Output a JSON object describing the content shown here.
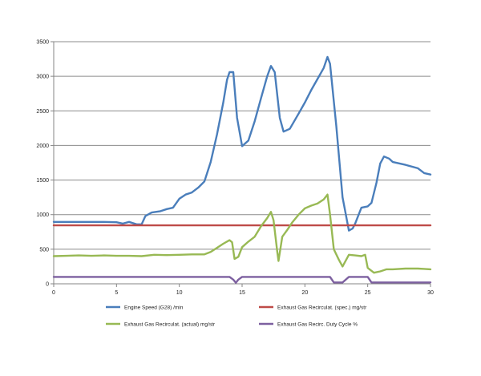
{
  "chart_data": {
    "type": "line",
    "xlim": [
      0,
      30
    ],
    "ylim": [
      0,
      3500
    ],
    "x_ticks": [
      0,
      5,
      10,
      15,
      20,
      25,
      30
    ],
    "y_ticks": [
      0,
      500,
      1000,
      1500,
      2000,
      2500,
      3000,
      3500
    ],
    "grid": "horizontal",
    "legend_position": "bottom",
    "series": [
      {
        "name": "Engine Speed (G28)  /min",
        "color": "#4a7ebb",
        "points": [
          [
            0,
            895
          ],
          [
            2,
            895
          ],
          [
            4,
            895
          ],
          [
            5,
            890
          ],
          [
            5.5,
            870
          ],
          [
            6,
            895
          ],
          [
            6.6,
            860
          ],
          [
            7,
            860
          ],
          [
            7.3,
            980
          ],
          [
            7.8,
            1030
          ],
          [
            8.5,
            1050
          ],
          [
            9,
            1080
          ],
          [
            9.5,
            1100
          ],
          [
            10,
            1230
          ],
          [
            10.5,
            1290
          ],
          [
            11,
            1320
          ],
          [
            11.5,
            1390
          ],
          [
            12,
            1480
          ],
          [
            12.5,
            1760
          ],
          [
            13,
            2160
          ],
          [
            13.5,
            2620
          ],
          [
            13.8,
            2950
          ],
          [
            14,
            3060
          ],
          [
            14.3,
            3060
          ],
          [
            14.6,
            2400
          ],
          [
            15,
            1990
          ],
          [
            15.5,
            2070
          ],
          [
            16,
            2350
          ],
          [
            16.5,
            2680
          ],
          [
            17,
            3000
          ],
          [
            17.3,
            3150
          ],
          [
            17.6,
            3060
          ],
          [
            18,
            2400
          ],
          [
            18.3,
            2200
          ],
          [
            18.8,
            2240
          ],
          [
            19.5,
            2460
          ],
          [
            20,
            2620
          ],
          [
            20.5,
            2800
          ],
          [
            21,
            2960
          ],
          [
            21.5,
            3120
          ],
          [
            21.8,
            3280
          ],
          [
            22,
            3180
          ],
          [
            22.5,
            2280
          ],
          [
            23,
            1250
          ],
          [
            23.5,
            770
          ],
          [
            23.8,
            800
          ],
          [
            24,
            870
          ],
          [
            24.5,
            1100
          ],
          [
            25,
            1120
          ],
          [
            25.3,
            1170
          ],
          [
            25.7,
            1460
          ],
          [
            26,
            1740
          ],
          [
            26.3,
            1840
          ],
          [
            26.7,
            1810
          ],
          [
            27,
            1760
          ],
          [
            28,
            1720
          ],
          [
            29,
            1670
          ],
          [
            29.5,
            1600
          ],
          [
            30,
            1580
          ]
        ]
      },
      {
        "name": "Exhaust Gas Recirculat. (spec.)  mg/str",
        "color": "#be4b48",
        "points": [
          [
            0,
            845
          ],
          [
            30,
            845
          ]
        ]
      },
      {
        "name": "Exhaust Gas Recirculat. (actual)  mg/str",
        "color": "#98b954",
        "points": [
          [
            0,
            400
          ],
          [
            1,
            405
          ],
          [
            2,
            410
          ],
          [
            3,
            405
          ],
          [
            4,
            410
          ],
          [
            5,
            405
          ],
          [
            6,
            405
          ],
          [
            7,
            400
          ],
          [
            8,
            420
          ],
          [
            9,
            415
          ],
          [
            10,
            420
          ],
          [
            11,
            425
          ],
          [
            12,
            425
          ],
          [
            12.5,
            460
          ],
          [
            13,
            520
          ],
          [
            13.5,
            580
          ],
          [
            14,
            630
          ],
          [
            14.2,
            600
          ],
          [
            14.4,
            360
          ],
          [
            14.7,
            390
          ],
          [
            15,
            530
          ],
          [
            15.5,
            610
          ],
          [
            16,
            680
          ],
          [
            16.5,
            830
          ],
          [
            17,
            950
          ],
          [
            17.3,
            1040
          ],
          [
            17.5,
            920
          ],
          [
            17.8,
            460
          ],
          [
            17.9,
            330
          ],
          [
            18.2,
            680
          ],
          [
            18.6,
            780
          ],
          [
            19,
            890
          ],
          [
            19.5,
            1000
          ],
          [
            20,
            1090
          ],
          [
            20.5,
            1130
          ],
          [
            21,
            1160
          ],
          [
            21.5,
            1220
          ],
          [
            21.8,
            1290
          ],
          [
            22,
            1000
          ],
          [
            22.3,
            500
          ],
          [
            22.7,
            350
          ],
          [
            23,
            250
          ],
          [
            23.5,
            420
          ],
          [
            24,
            410
          ],
          [
            24.5,
            400
          ],
          [
            24.8,
            420
          ],
          [
            25,
            230
          ],
          [
            25.5,
            160
          ],
          [
            26,
            180
          ],
          [
            26.5,
            210
          ],
          [
            27,
            210
          ],
          [
            28,
            220
          ],
          [
            29,
            220
          ],
          [
            29.5,
            215
          ],
          [
            30,
            210
          ]
        ]
      },
      {
        "name": "Exhaust Gas Recirc. Duty Cycle  %",
        "color": "#7d60a0",
        "points": [
          [
            0,
            100
          ],
          [
            14,
            100
          ],
          [
            14.3,
            60
          ],
          [
            14.5,
            15
          ],
          [
            14.7,
            60
          ],
          [
            15,
            100
          ],
          [
            22,
            100
          ],
          [
            22.3,
            20
          ],
          [
            23,
            20
          ],
          [
            23.5,
            100
          ],
          [
            25,
            100
          ],
          [
            25.3,
            20
          ],
          [
            30,
            20
          ]
        ]
      }
    ]
  }
}
